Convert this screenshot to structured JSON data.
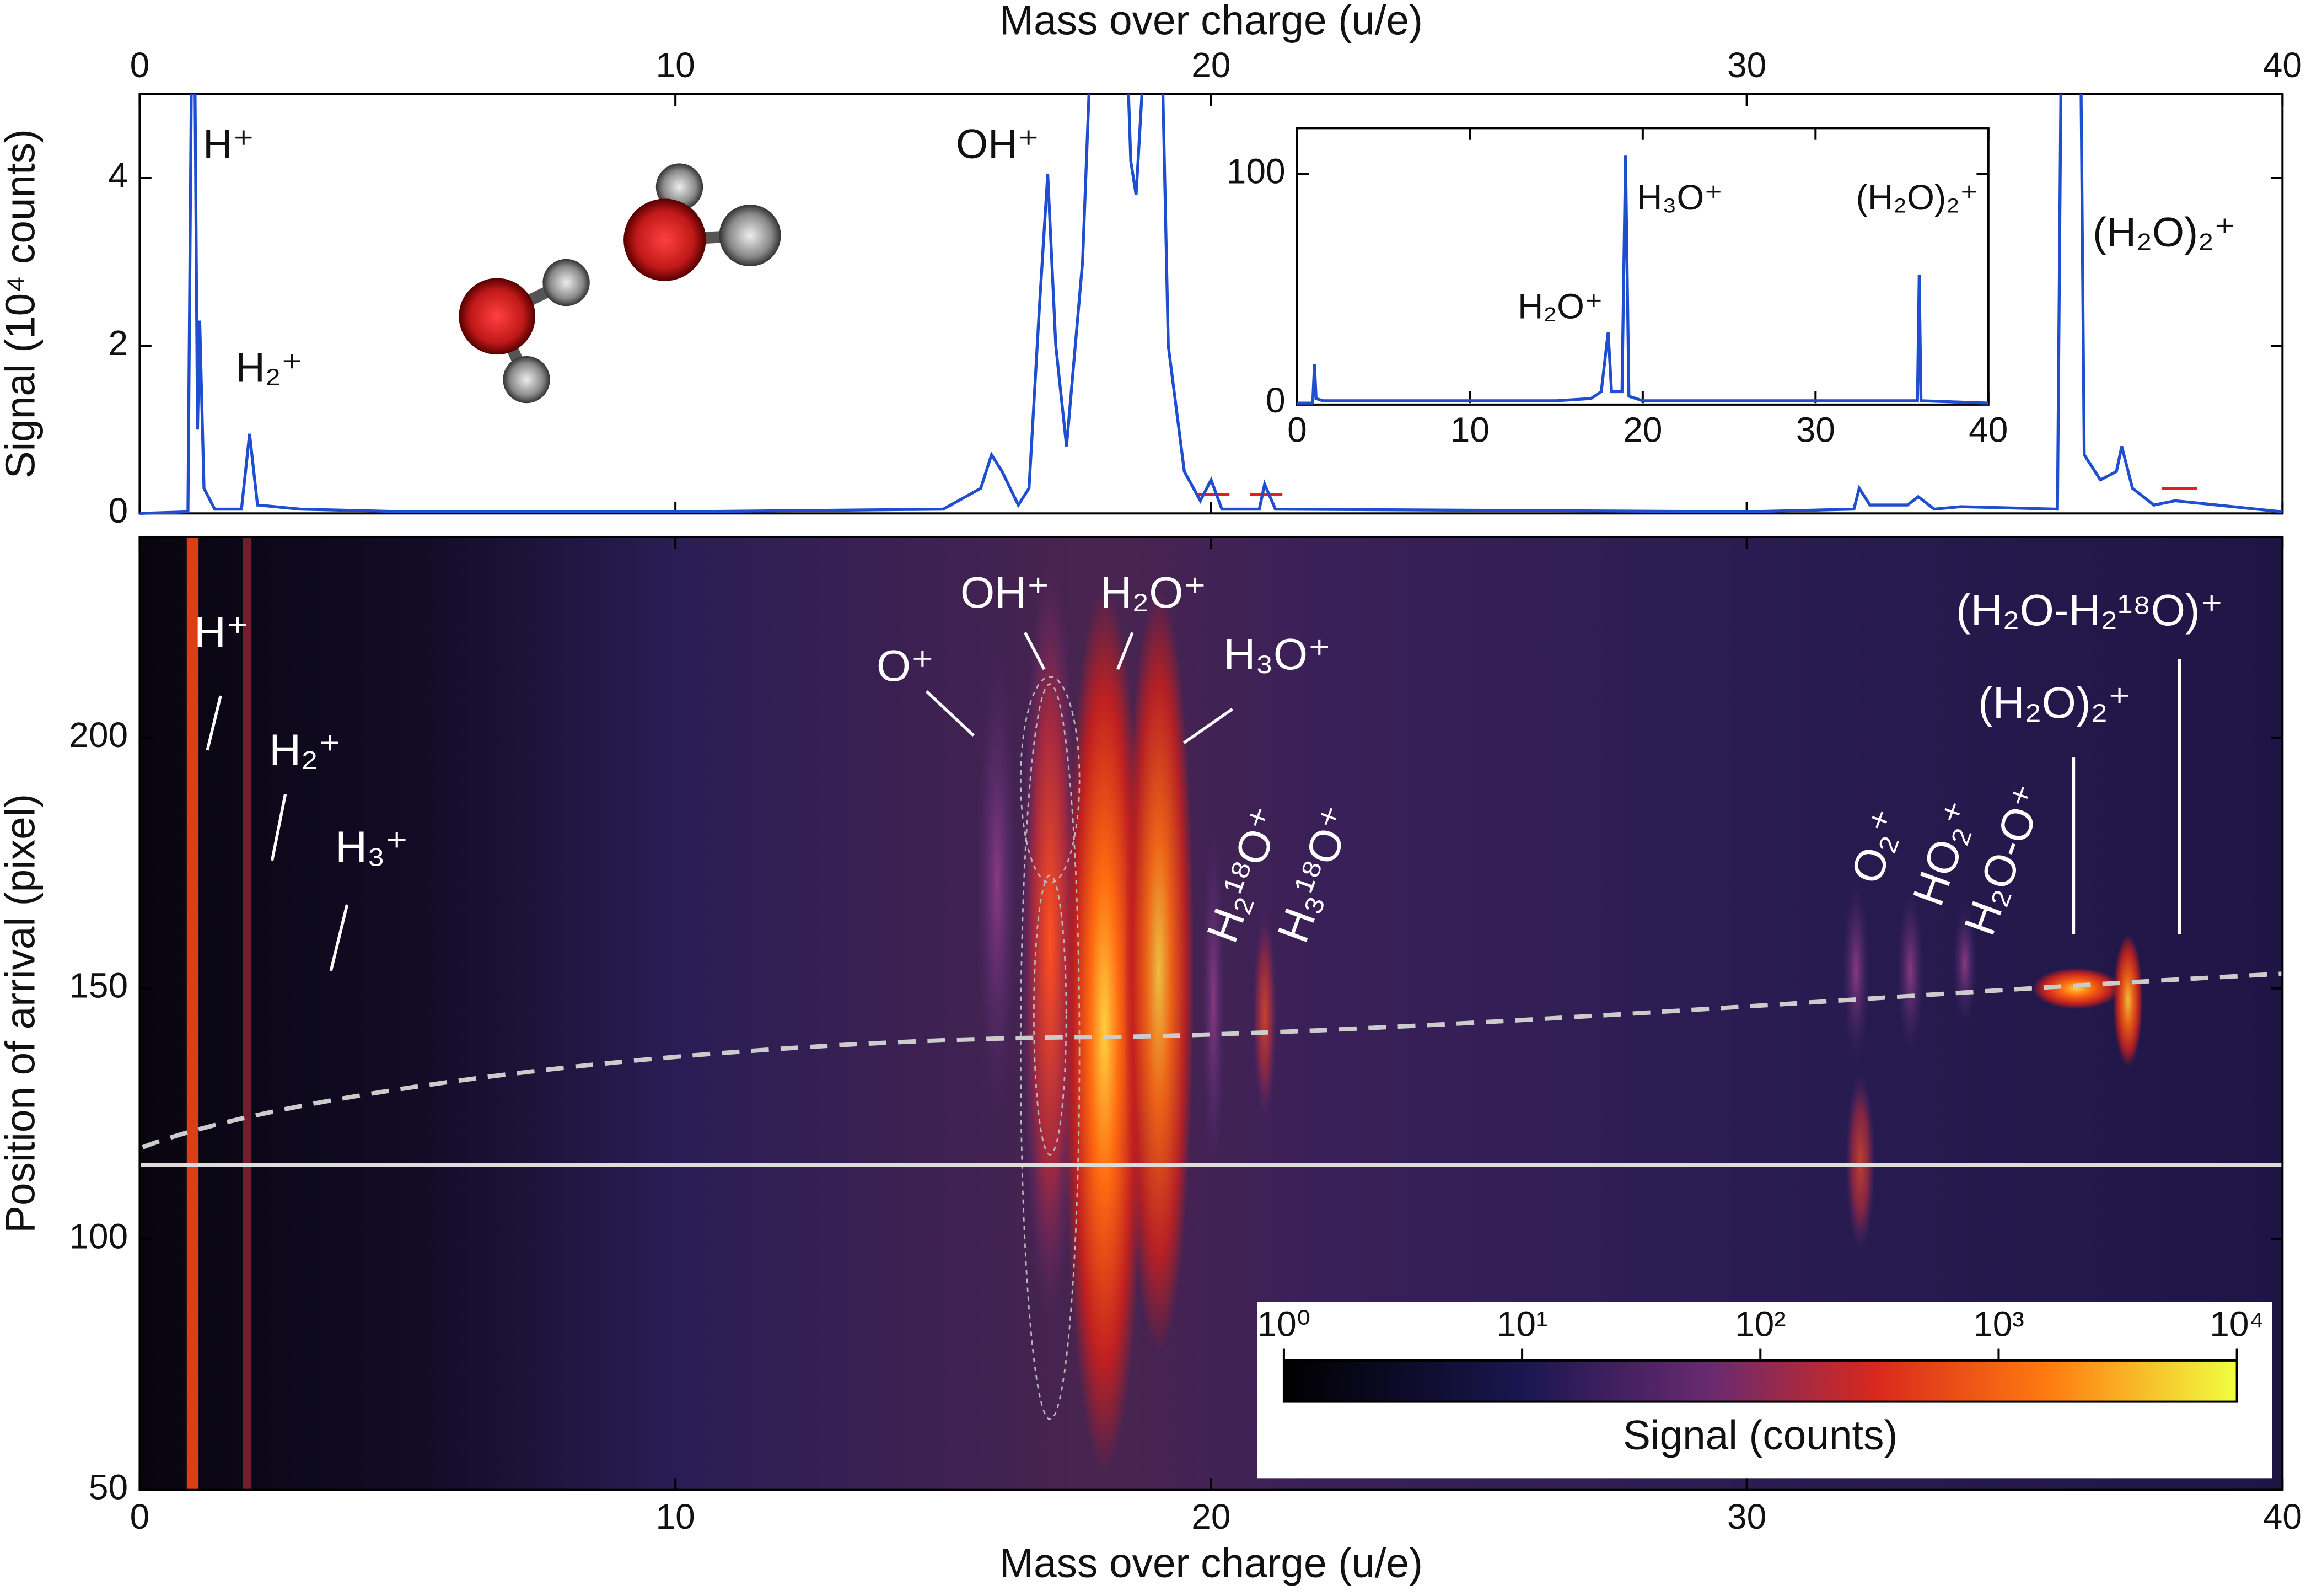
{
  "chart_data": [
    {
      "type": "line",
      "xlabel": "Mass over charge (u/e)",
      "ylabel": "Signal (10⁴ counts)",
      "xlim": [
        0,
        40
      ],
      "xticks": [
        0,
        10,
        20,
        30,
        40
      ],
      "ylim": [
        0,
        5
      ],
      "yticks": [
        0,
        2,
        4
      ],
      "x": [
        0,
        0.9,
        1.0,
        1.08,
        1.12,
        1.2,
        1.4,
        1.9,
        2.05,
        2.2,
        3,
        5,
        10,
        15,
        15.7,
        15.9,
        16.1,
        16.4,
        16.6,
        16.8,
        16.95,
        17.1,
        17.3,
        17.6,
        17.9,
        18.3,
        18.5,
        18.6,
        18.8,
        19.0,
        19.2,
        19.5,
        19.8,
        20.0,
        20.2,
        20.9,
        21.0,
        21.2,
        30,
        32,
        32.1,
        32.3,
        33.0,
        33.2,
        33.5,
        34,
        35.8,
        35.9,
        36.2,
        36.3,
        36.6,
        36.9,
        37.0,
        37.2,
        37.6,
        38,
        40
      ],
      "series": [
        {
          "color": "#1f4fd0",
          "values": [
            0,
            0.02,
            8,
            1.0,
            2.3,
            0.3,
            0.05,
            0.05,
            0.95,
            0.1,
            0.05,
            0.02,
            0.02,
            0.05,
            0.3,
            0.7,
            0.5,
            0.1,
            0.3,
            2.5,
            4.05,
            2.0,
            0.8,
            3.0,
            8,
            8,
            4.2,
            3.8,
            6,
            8,
            2.0,
            0.5,
            0.15,
            0.4,
            0.05,
            0.05,
            0.35,
            0.05,
            0.02,
            0.05,
            0.3,
            0.1,
            0.1,
            0.2,
            0.05,
            0.08,
            0.05,
            8,
            8,
            0.7,
            0.4,
            0.5,
            0.8,
            0.3,
            0.1,
            0.15,
            0.02
          ]
        }
      ],
      "annotations": [
        "H⁺",
        "H₂⁺",
        "OH⁺",
        "(H₂O)₂⁺"
      ]
    },
    {
      "type": "line",
      "xlim": [
        0,
        40
      ],
      "xticks": [
        0,
        10,
        20,
        30,
        40
      ],
      "ylim": [
        0,
        120
      ],
      "yticks": [
        0,
        100
      ],
      "x": [
        0,
        0.9,
        1.0,
        1.1,
        1.5,
        5,
        15,
        17,
        17.6,
        18.0,
        18.2,
        18.8,
        19.0,
        19.2,
        20,
        32,
        35.9,
        36.0,
        36.1,
        40
      ],
      "series": [
        {
          "color": "#1f4fd0",
          "values": [
            0,
            0,
            17,
            2,
            1,
            1,
            1,
            2,
            5,
            31,
            5,
            5,
            108,
            3,
            1,
            1,
            1,
            56,
            1,
            0
          ]
        }
      ],
      "annotations": [
        "H₂O⁺",
        "H₃O⁺",
        "(H₂O)₂⁺"
      ]
    },
    {
      "type": "heatmap",
      "xlabel": "Mass over charge (u/e)",
      "ylabel": "Position of arrival (pixel)",
      "xlim": [
        0,
        40
      ],
      "xticks": [
        0,
        10,
        20,
        30,
        40
      ],
      "ylim": [
        50,
        240
      ],
      "yticks": [
        50,
        100,
        150,
        200
      ],
      "annotations": [
        "H⁺",
        "H₂⁺",
        "H₃⁺",
        "O⁺",
        "OH⁺",
        "H₂O⁺",
        "H₃O⁺",
        "H₂¹⁸O⁺",
        "H₃¹⁸O⁺",
        "O₂⁺",
        "HO₂⁺",
        "H₂O-O⁺",
        "(H₂O)₂⁺",
        "(H₂O-H₂¹⁸O)⁺"
      ],
      "colorbar": {
        "label": "Signal (counts)",
        "log": true,
        "lim": [
          1,
          10000
        ],
        "ticks": [
          {
            "value": 1,
            "label": "10⁰"
          },
          {
            "value": 10,
            "label": "10¹"
          },
          {
            "value": 100,
            "label": "10²"
          },
          {
            "value": 1000,
            "label": "10³"
          },
          {
            "value": 10000,
            "label": "10⁴"
          }
        ]
      }
    }
  ]
}
